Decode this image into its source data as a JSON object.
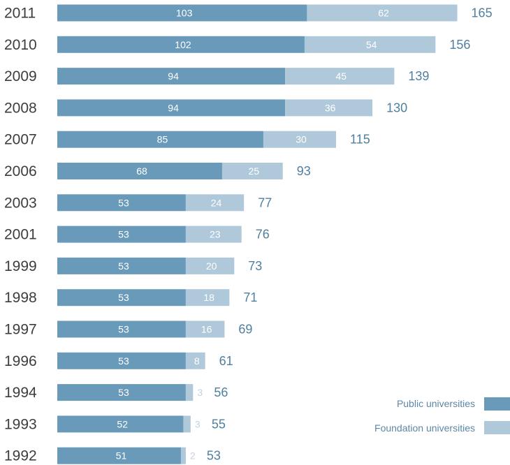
{
  "chart_data": {
    "type": "bar",
    "orientation": "horizontal",
    "stacked": true,
    "categories": [
      "2011",
      "2010",
      "2009",
      "2008",
      "2007",
      "2006",
      "2003",
      "2001",
      "1999",
      "1998",
      "1997",
      "1996",
      "1994",
      "1993",
      "1992"
    ],
    "series": [
      {
        "name": "Public universities",
        "color": "#6a9aba",
        "values": [
          103,
          102,
          94,
          94,
          85,
          68,
          53,
          53,
          53,
          53,
          53,
          53,
          53,
          52,
          51
        ]
      },
      {
        "name": "Foundation universities",
        "color": "#afc8da",
        "values": [
          62,
          54,
          45,
          36,
          30,
          25,
          24,
          23,
          20,
          18,
          16,
          8,
          3,
          3,
          2
        ]
      }
    ],
    "totals": [
      165,
      156,
      139,
      130,
      115,
      93,
      77,
      76,
      73,
      71,
      69,
      61,
      56,
      55,
      53
    ],
    "grid": false,
    "legend_position": "bottom-right",
    "title": "",
    "xlabel": "",
    "ylabel": ""
  }
}
